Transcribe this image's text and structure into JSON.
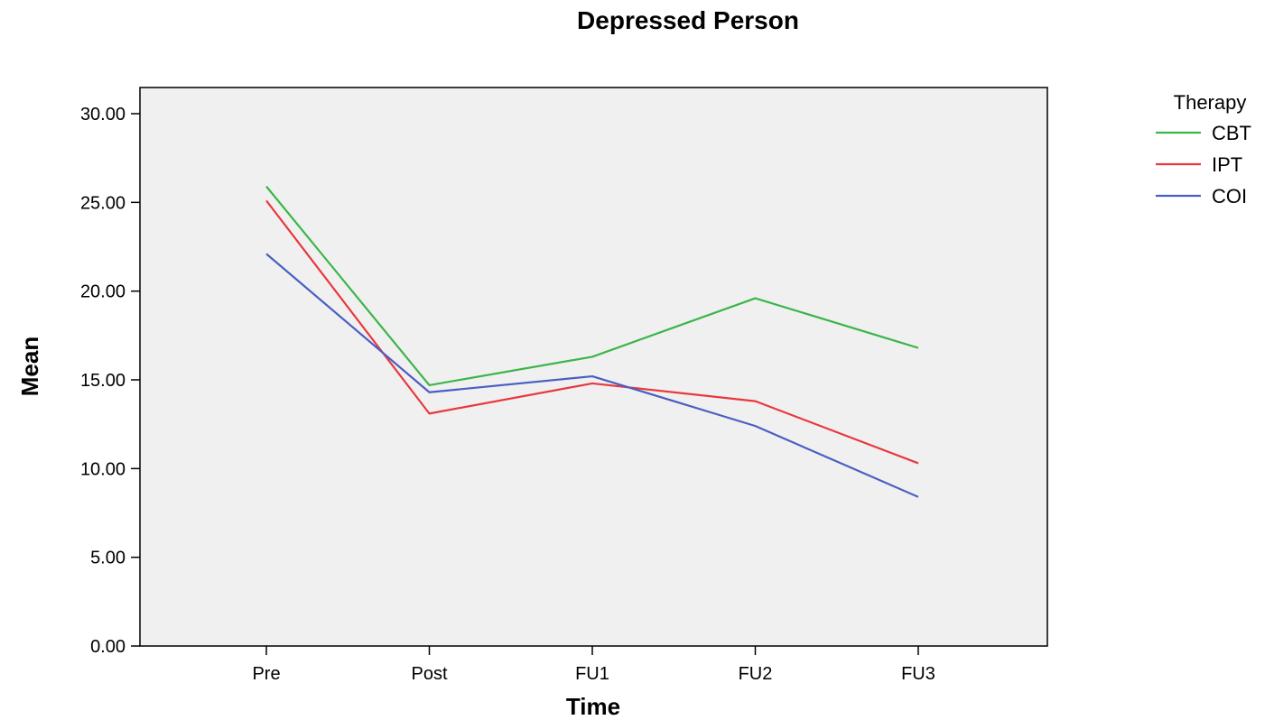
{
  "chart_data": {
    "type": "line",
    "title": "Depressed Person",
    "xlabel": "Time",
    "ylabel": "Mean",
    "categories": [
      "Pre",
      "Post",
      "FU1",
      "FU2",
      "FU3"
    ],
    "ylim": [
      0,
      30
    ],
    "yticks": [
      "0.00",
      "5.00",
      "10.00",
      "15.00",
      "20.00",
      "25.00",
      "30.00"
    ],
    "grid": false,
    "legend": {
      "title": "Therapy",
      "placement": "right"
    },
    "series": [
      {
        "name": "CBT",
        "color": "#3cb54a",
        "values": [
          25.9,
          14.7,
          16.3,
          19.6,
          16.8
        ]
      },
      {
        "name": "IPT",
        "color": "#e8383d",
        "values": [
          25.1,
          13.1,
          14.8,
          13.8,
          10.3
        ]
      },
      {
        "name": "COI",
        "color": "#4a5fc1",
        "values": [
          22.1,
          14.3,
          15.2,
          12.4,
          8.4
        ]
      }
    ]
  }
}
